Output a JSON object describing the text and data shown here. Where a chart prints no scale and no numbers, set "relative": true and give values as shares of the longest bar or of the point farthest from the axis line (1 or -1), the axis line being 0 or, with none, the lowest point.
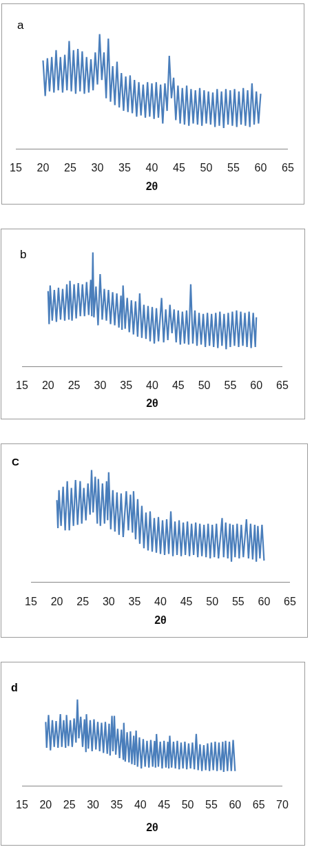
{
  "chart_data": [
    {
      "type": "line",
      "relative": true,
      "color": "#4a7ebb",
      "xlabel": "2θ",
      "annotations": [
        "a"
      ],
      "tick_labels": "x",
      "xlim": [
        15,
        65
      ],
      "xticks": [
        15,
        20,
        25,
        30,
        35,
        40,
        45,
        50,
        55,
        60,
        65
      ],
      "x": [
        20,
        20.4,
        20.8,
        21.2,
        21.6,
        22,
        22.4,
        22.8,
        23.2,
        23.6,
        24,
        24.4,
        24.8,
        25.2,
        25.6,
        26,
        26.4,
        26.8,
        27.2,
        27.6,
        28,
        28.4,
        28.8,
        29.2,
        29.6,
        30,
        30.4,
        30.8,
        31.2,
        31.6,
        32,
        32.4,
        32.8,
        33.2,
        33.6,
        34,
        34.4,
        34.8,
        35.2,
        35.6,
        36,
        36.4,
        36.8,
        37.2,
        37.6,
        38,
        38.4,
        38.8,
        39.2,
        39.6,
        40,
        40.4,
        40.8,
        41.2,
        41.6,
        42,
        42.4,
        42.8,
        43.2,
        43.6,
        44,
        44.4,
        44.8,
        45.2,
        45.6,
        46,
        46.4,
        46.8,
        47.2,
        47.6,
        48,
        48.4,
        48.8,
        49.2,
        49.6,
        50,
        50.4,
        50.8,
        51.2,
        51.6,
        52,
        52.4,
        52.8,
        53.2,
        53.6,
        54,
        54.4,
        54.8,
        55.2,
        55.6,
        56,
        56.4,
        56.8,
        57.2,
        57.6,
        58,
        58.4,
        58.8,
        59.2,
        59.6,
        60
      ],
      "values": [
        0.77,
        0.46,
        0.79,
        0.5,
        0.8,
        0.49,
        0.86,
        0.51,
        0.8,
        0.49,
        0.82,
        0.51,
        0.94,
        0.5,
        0.86,
        0.48,
        0.87,
        0.5,
        0.85,
        0.48,
        0.8,
        0.49,
        0.78,
        0.51,
        0.84,
        0.56,
        1,
        0.6,
        0.84,
        0.44,
        0.96,
        0.41,
        0.72,
        0.38,
        0.76,
        0.36,
        0.66,
        0.33,
        0.63,
        0.32,
        0.64,
        0.31,
        0.6,
        0.28,
        0.58,
        0.29,
        0.56,
        0.27,
        0.58,
        0.28,
        0.57,
        0.26,
        0.58,
        0.27,
        0.56,
        0.22,
        0.57,
        0.33,
        0.81,
        0.44,
        0.62,
        0.25,
        0.55,
        0.22,
        0.53,
        0.21,
        0.55,
        0.2,
        0.52,
        0.22,
        0.51,
        0.21,
        0.53,
        0.2,
        0.51,
        0.22,
        0.5,
        0.21,
        0.49,
        0.19,
        0.52,
        0.2,
        0.5,
        0.18,
        0.52,
        0.21,
        0.51,
        0.2,
        0.52,
        0.19,
        0.5,
        0.21,
        0.53,
        0.2,
        0.51,
        0.19,
        0.57,
        0.21,
        0.5,
        0.22,
        0.48
      ]
    },
    {
      "type": "line",
      "relative": true,
      "color": "#4a7ebb",
      "xlabel": "2θ",
      "annotations": [
        "b"
      ],
      "tick_labels": "x",
      "xlim": [
        15,
        65
      ],
      "xticks": [
        15,
        20,
        25,
        30,
        35,
        40,
        45,
        50,
        55,
        60,
        65
      ],
      "x": [
        20,
        20.2,
        20.4,
        20.8,
        21.2,
        21.6,
        22,
        22.4,
        22.8,
        23.2,
        23.6,
        24,
        24.2,
        24.6,
        25,
        25.4,
        25.8,
        26.2,
        26.6,
        27,
        27.4,
        27.8,
        28.2,
        28.4,
        28.6,
        28.8,
        29.2,
        29.6,
        30,
        30.4,
        30.8,
        31.2,
        31.6,
        32,
        32.4,
        32.8,
        33.2,
        33.6,
        34,
        34.2,
        34.4,
        34.8,
        35.2,
        35.6,
        36,
        36.4,
        36.8,
        37.2,
        37.6,
        38,
        38.4,
        38.8,
        39.2,
        39.6,
        40,
        40.4,
        40.8,
        41.2,
        41.8,
        42.2,
        42.6,
        43,
        43.4,
        43.8,
        44.2,
        44.6,
        45,
        45.4,
        45.8,
        46.2,
        46.6,
        47,
        47.4,
        47.8,
        48.2,
        48.6,
        49,
        49.4,
        49.8,
        50.2,
        50.6,
        51,
        51.4,
        51.8,
        52.2,
        52.6,
        53,
        53.4,
        53.8,
        54.2,
        54.6,
        55,
        55.4,
        55.8,
        56.2,
        56.6,
        57,
        57.4,
        57.8,
        58.2,
        58.6,
        59,
        59.4,
        59.8,
        60
      ],
      "values": [
        0.66,
        0.37,
        0.71,
        0.4,
        0.67,
        0.39,
        0.69,
        0.41,
        0.68,
        0.4,
        0.72,
        0.41,
        0.75,
        0.4,
        0.72,
        0.42,
        0.73,
        0.44,
        0.72,
        0.44,
        0.74,
        0.45,
        0.76,
        0.44,
        1,
        0.43,
        0.7,
        0.36,
        0.81,
        0.41,
        0.68,
        0.4,
        0.67,
        0.37,
        0.65,
        0.36,
        0.64,
        0.34,
        0.62,
        0.32,
        0.71,
        0.33,
        0.6,
        0.3,
        0.58,
        0.28,
        0.57,
        0.26,
        0.64,
        0.25,
        0.54,
        0.24,
        0.53,
        0.22,
        0.52,
        0.2,
        0.51,
        0.22,
        0.6,
        0.21,
        0.5,
        0.23,
        0.54,
        0.29,
        0.5,
        0.21,
        0.49,
        0.19,
        0.48,
        0.2,
        0.49,
        0.19,
        0.72,
        0.2,
        0.49,
        0.18,
        0.47,
        0.19,
        0.46,
        0.17,
        0.47,
        0.18,
        0.46,
        0.17,
        0.47,
        0.16,
        0.48,
        0.18,
        0.46,
        0.15,
        0.47,
        0.17,
        0.48,
        0.18,
        0.49,
        0.17,
        0.48,
        0.18,
        0.47,
        0.17,
        0.48,
        0.16,
        0.47,
        0.17,
        0.43
      ]
    },
    {
      "type": "line",
      "relative": true,
      "color": "#4a7ebb",
      "xlabel": "2θ",
      "annotations": [
        "C"
      ],
      "tick_labels": "x",
      "xlim": [
        15,
        65
      ],
      "xticks": [
        15,
        20,
        25,
        30,
        35,
        40,
        45,
        50,
        55,
        60,
        65
      ],
      "x": [
        20,
        20.2,
        20.4,
        20.8,
        21.2,
        21.6,
        22,
        22.4,
        22.8,
        23.2,
        23.6,
        24,
        24.5,
        24.8,
        25.2,
        25.6,
        26,
        26.4,
        26.7,
        27,
        27.4,
        27.8,
        28,
        28.4,
        28.8,
        29.2,
        29.6,
        29.8,
        30,
        30.4,
        30.8,
        31.2,
        31.6,
        32,
        32.4,
        32.8,
        33.4,
        33.8,
        34.2,
        34.6,
        34.8,
        35.2,
        35.6,
        36,
        36.4,
        36.8,
        37.2,
        37.6,
        38,
        38.4,
        38.8,
        39.2,
        39.6,
        40,
        40.4,
        40.8,
        41.2,
        41.6,
        42,
        42.4,
        42.8,
        43.2,
        43.6,
        44,
        44.4,
        44.8,
        45.2,
        45.6,
        46,
        46.4,
        46.8,
        47.2,
        47.6,
        48,
        48.4,
        48.8,
        49.2,
        49.6,
        50,
        50.4,
        50.8,
        51.2,
        51.9,
        52.2,
        52.6,
        53,
        53.4,
        53.7,
        54,
        54.4,
        54.8,
        55.2,
        55.6,
        56,
        56.6,
        57,
        57.4,
        57.8,
        58.2,
        58.5,
        58.8,
        59.2,
        59.6,
        60
      ],
      "values": [
        0.73,
        0.48,
        0.82,
        0.5,
        0.85,
        0.46,
        0.9,
        0.46,
        0.84,
        0.5,
        0.91,
        0.51,
        0.9,
        0.52,
        0.84,
        0.55,
        0.88,
        0.6,
        1,
        0.62,
        0.94,
        0.52,
        0.92,
        0.5,
        0.88,
        0.52,
        0.9,
        0.55,
        0.98,
        0.47,
        0.82,
        0.45,
        0.8,
        0.42,
        0.79,
        0.4,
        0.81,
        0.46,
        0.78,
        0.44,
        0.81,
        0.38,
        0.74,
        0.34,
        0.68,
        0.3,
        0.62,
        0.28,
        0.63,
        0.27,
        0.57,
        0.26,
        0.58,
        0.25,
        0.55,
        0.24,
        0.56,
        0.25,
        0.63,
        0.23,
        0.54,
        0.24,
        0.55,
        0.23,
        0.53,
        0.24,
        0.54,
        0.23,
        0.52,
        0.24,
        0.53,
        0.22,
        0.52,
        0.23,
        0.51,
        0.22,
        0.52,
        0.21,
        0.51,
        0.22,
        0.52,
        0.21,
        0.57,
        0.22,
        0.53,
        0.21,
        0.52,
        0.18,
        0.51,
        0.22,
        0.52,
        0.21,
        0.51,
        0.22,
        0.56,
        0.21,
        0.52,
        0.2,
        0.51,
        0.18,
        0.5,
        0.21,
        0.51,
        0.19
      ]
    },
    {
      "type": "line",
      "relative": true,
      "color": "#4a7ebb",
      "xlabel": "2θ",
      "annotations": [
        "d"
      ],
      "tick_labels": "x",
      "xlim": [
        15,
        70
      ],
      "xticks": [
        15,
        20,
        25,
        30,
        35,
        40,
        45,
        50,
        55,
        60,
        65,
        70
      ],
      "x": [
        20,
        20.2,
        20.6,
        21,
        21.4,
        21.8,
        22.2,
        22.6,
        23.1,
        23.4,
        23.8,
        24.2,
        24.4,
        24.8,
        25.2,
        25.6,
        26,
        26.4,
        26.7,
        27,
        27.4,
        27.8,
        28.2,
        28.5,
        28.6,
        29,
        29.4,
        29.8,
        30.2,
        30.6,
        31,
        31.4,
        31.8,
        32.2,
        32.6,
        33,
        33.4,
        33.6,
        34,
        34.2,
        34.5,
        34.8,
        35.2,
        35.6,
        36,
        36.4,
        36.5,
        36.8,
        37.2,
        37.6,
        37.9,
        38.2,
        38.6,
        38.8,
        39.1,
        39.4,
        39.8,
        40.2,
        40.6,
        41,
        41.4,
        41.8,
        42.2,
        42.6,
        43,
        43.2,
        43.4,
        43.8,
        44.2,
        44.6,
        45,
        45.4,
        45.8,
        46,
        46.2,
        46.6,
        47,
        47.4,
        47.8,
        48.2,
        48.6,
        49,
        49.4,
        49.8,
        50.2,
        50.6,
        51,
        51.4,
        51.8,
        52.2,
        52.6,
        53,
        53.4,
        53.8,
        54.2,
        54.6,
        55,
        55.4,
        55.8,
        56.2,
        56.6,
        57,
        57.4,
        57.6,
        58,
        58.4,
        58.8,
        59.2,
        59.6,
        60
      ],
      "values": [
        0.74,
        0.44,
        0.82,
        0.41,
        0.76,
        0.45,
        0.75,
        0.44,
        0.83,
        0.45,
        0.76,
        0.44,
        0.82,
        0.46,
        0.76,
        0.45,
        0.78,
        0.5,
        1,
        0.55,
        0.8,
        0.45,
        0.77,
        0.39,
        0.83,
        0.43,
        0.76,
        0.4,
        0.77,
        0.42,
        0.74,
        0.4,
        0.73,
        0.38,
        0.74,
        0.37,
        0.72,
        0.35,
        0.81,
        0.4,
        0.81,
        0.36,
        0.66,
        0.32,
        0.65,
        0.3,
        0.73,
        0.28,
        0.62,
        0.27,
        0.63,
        0.25,
        0.58,
        0.24,
        0.64,
        0.22,
        0.56,
        0.2,
        0.54,
        0.22,
        0.52,
        0.21,
        0.53,
        0.22,
        0.52,
        0.21,
        0.6,
        0.22,
        0.51,
        0.2,
        0.52,
        0.21,
        0.51,
        0.2,
        0.58,
        0.21,
        0.51,
        0.2,
        0.52,
        0.19,
        0.5,
        0.2,
        0.51,
        0.19,
        0.49,
        0.2,
        0.5,
        0.19,
        0.6,
        0.18,
        0.48,
        0.17,
        0.47,
        0.18,
        0.49,
        0.17,
        0.5,
        0.18,
        0.51,
        0.17,
        0.5,
        0.18,
        0.51,
        0.16,
        0.52,
        0.17,
        0.51,
        0.17,
        0.53,
        0.17
      ]
    }
  ]
}
